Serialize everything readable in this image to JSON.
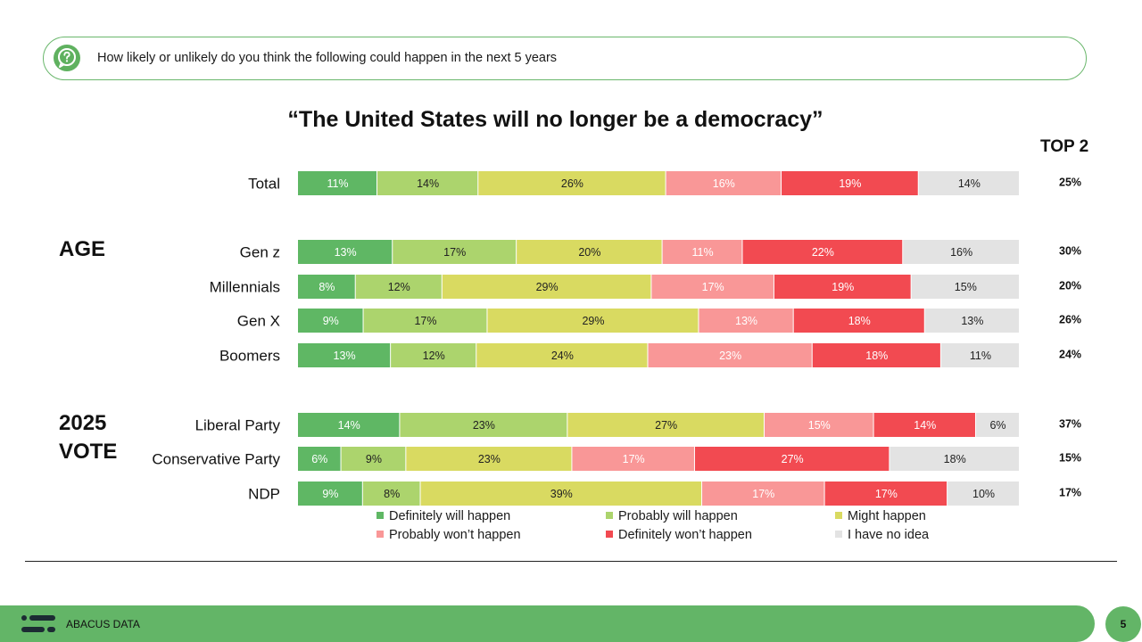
{
  "question": {
    "text": "How likely or unlikely do you think the following could happen in the next 5 years",
    "icon": "question-chat-icon"
  },
  "top2_label": "TOP 2",
  "sections": {
    "age": "AGE",
    "vote": "2025\nVOTE"
  },
  "chart_data": {
    "type": "bar",
    "orientation": "horizontal",
    "stacked": true,
    "percent": true,
    "title": "“The United States will no longer be a democracy”",
    "categories": [
      "Total",
      "Gen z",
      "Millennials",
      "Gen X",
      "Boomers",
      "Liberal Party",
      "Conservative Party",
      "NDP"
    ],
    "series": [
      {
        "name": "Definitely will happen",
        "color": "#5fb764",
        "values": [
          11,
          13,
          8,
          9,
          13,
          14,
          6,
          9
        ]
      },
      {
        "name": "Probably will happen",
        "color": "#acd46d",
        "values": [
          14,
          17,
          12,
          17,
          12,
          23,
          9,
          8
        ]
      },
      {
        "name": "Might happen",
        "color": "#d9da61",
        "values": [
          26,
          20,
          29,
          29,
          24,
          27,
          23,
          39
        ]
      },
      {
        "name": "Probably won’t happen",
        "color": "#f99797",
        "values": [
          16,
          11,
          17,
          13,
          23,
          15,
          17,
          17
        ]
      },
      {
        "name": "Definitely won’t happen",
        "color": "#f24a51",
        "values": [
          19,
          22,
          19,
          18,
          18,
          14,
          27,
          17
        ]
      },
      {
        "name": "I have no idea",
        "color": "#e3e3e3",
        "values": [
          14,
          16,
          15,
          13,
          11,
          6,
          18,
          10
        ]
      }
    ],
    "top2": [
      "25%",
      "30%",
      "20%",
      "26%",
      "24%",
      "37%",
      "15%",
      "17%"
    ],
    "xlim": [
      0,
      100
    ],
    "grid": false,
    "legend_position": "bottom"
  },
  "footer": {
    "brand": "ABACUS DATA",
    "page_number": "5"
  }
}
